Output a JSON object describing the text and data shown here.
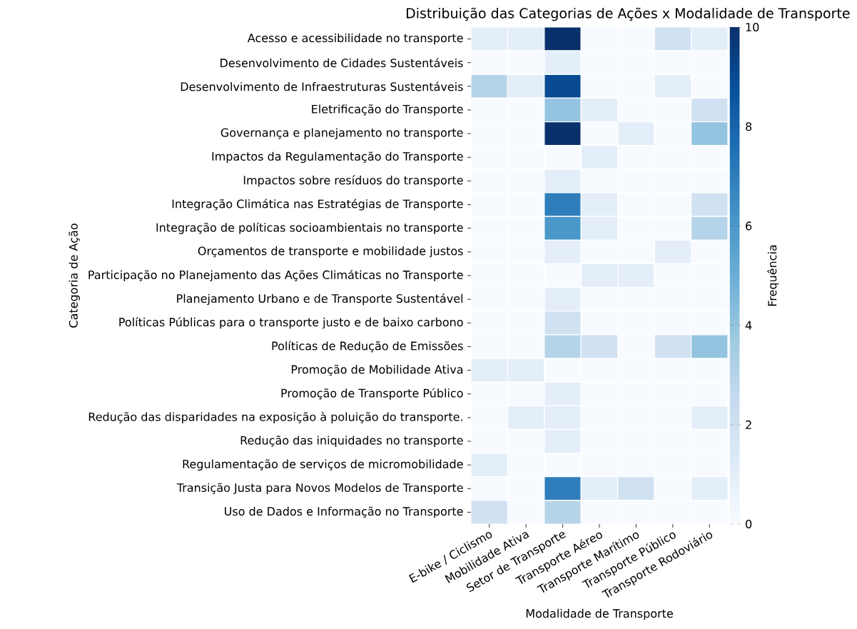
{
  "chart_data": {
    "type": "heatmap",
    "title": "Distribuição das Categorias de Ações x Modalidade de Transporte",
    "xlabel": "Modalidade de Transporte",
    "ylabel": "Categoria de Ação",
    "clabel": "Frequência",
    "categories": [
      "E-bike / Ciclismo",
      "Mobilidade Ativa",
      "Setor de Transporte",
      "Transporte Aéreo",
      "Transporte Marítimo",
      "Transporte Público",
      "Transporte Rodoviário"
    ],
    "y_categories": [
      "Acesso e acessibilidade no transporte",
      "Desenvolvimento de Cidades Sustentáveis",
      "Desenvolvimento de Infraestruturas Sustentáveis",
      "Eletrificação do Transporte",
      "Governança e planejamento no transporte",
      "Impactos da Regulamentação do Transporte",
      "Impactos sobre resíduos do transporte",
      "Integração Climática nas Estratégias de Transporte",
      "Integração de políticas socioambientais no transporte",
      "Orçamentos de transporte e mobilidade justos",
      "Participação no Planejamento das Ações Climáticas no Transporte",
      "Planejamento Urbano e de Transporte Sustentável",
      "Políticas Públicas para o transporte justo e de baixo carbono",
      "Políticas de Redução de Emissões",
      "Promoção de Mobilidade Ativa",
      "Promoção de Transporte Público",
      "Redução das disparidades na exposição à poluição do transporte.",
      "Redução das iniquidades no transporte",
      "Regulamentação de serviços de micromobilidade",
      "Transição Justa para Novos Modelos de Transporte",
      "Uso de Dados e Informação no Transporte"
    ],
    "cells": [
      [
        1,
        1,
        10,
        0,
        0,
        2,
        1
      ],
      [
        0,
        0,
        1,
        0,
        0,
        0,
        0
      ],
      [
        3,
        1,
        9,
        0,
        0,
        1,
        0
      ],
      [
        0,
        0,
        4,
        1,
        0,
        0,
        2
      ],
      [
        0,
        0,
        10,
        0,
        1,
        0,
        4
      ],
      [
        0,
        0,
        0,
        1,
        0,
        0,
        0
      ],
      [
        0,
        0,
        1,
        0,
        0,
        0,
        0
      ],
      [
        0,
        0,
        7,
        1,
        0,
        0,
        2
      ],
      [
        0,
        0,
        6,
        1,
        0,
        0,
        3
      ],
      [
        0,
        0,
        1,
        0,
        0,
        1,
        0
      ],
      [
        0,
        0,
        0,
        1,
        1,
        0,
        0
      ],
      [
        0,
        0,
        1,
        0,
        0,
        0,
        0
      ],
      [
        0,
        0,
        2,
        0,
        0,
        0,
        0
      ],
      [
        0,
        0,
        3,
        2,
        0,
        2,
        4
      ],
      [
        1,
        1,
        0,
        0,
        0,
        0,
        0
      ],
      [
        0,
        0,
        1,
        0,
        0,
        0,
        0
      ],
      [
        0,
        1,
        1,
        0,
        0,
        0,
        1
      ],
      [
        0,
        0,
        1,
        0,
        0,
        0,
        0
      ],
      [
        1,
        0,
        0,
        0,
        0,
        0,
        0
      ],
      [
        0,
        0,
        7,
        1,
        2,
        0,
        1
      ],
      [
        2,
        0,
        3,
        0,
        0,
        0,
        0
      ]
    ],
    "clim": [
      0,
      10
    ],
    "cticks": [
      0,
      2,
      4,
      6,
      8,
      10
    ]
  }
}
